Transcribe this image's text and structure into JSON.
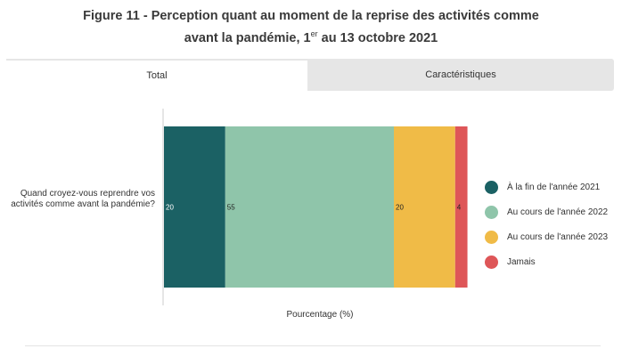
{
  "figure": {
    "title_line1": "Figure 11 - Perception quant au moment de la reprise des activités comme",
    "title_line2_pre": "avant la pandémie, 1",
    "title_sup": "er",
    "title_line2_post": " au 13 octobre 2021"
  },
  "tabs": [
    {
      "label": "Total",
      "active": true
    },
    {
      "label": "Caractéristiques",
      "active": false
    }
  ],
  "chart_data": {
    "type": "bar",
    "orientation": "horizontal",
    "stacked": true,
    "categories": [
      "Quand croyez-vous reprendre vos activités comme avant la pandémie?"
    ],
    "series": [
      {
        "name": "À la fin de l'année 2021",
        "values": [
          20
        ],
        "color": "#1b6164"
      },
      {
        "name": "Au cours de l'année 2022",
        "values": [
          55
        ],
        "color": "#8fc5aa"
      },
      {
        "name": "Au cours de l'année 2023",
        "values": [
          20
        ],
        "color": "#f0bb47"
      },
      {
        "name": "Jamais",
        "values": [
          4
        ],
        "color": "#de5658"
      }
    ],
    "xlabel": "Pourcentage (%)",
    "ylabel": "",
    "xlim": [
      0,
      100
    ],
    "legend_position": "right",
    "grid": false
  }
}
